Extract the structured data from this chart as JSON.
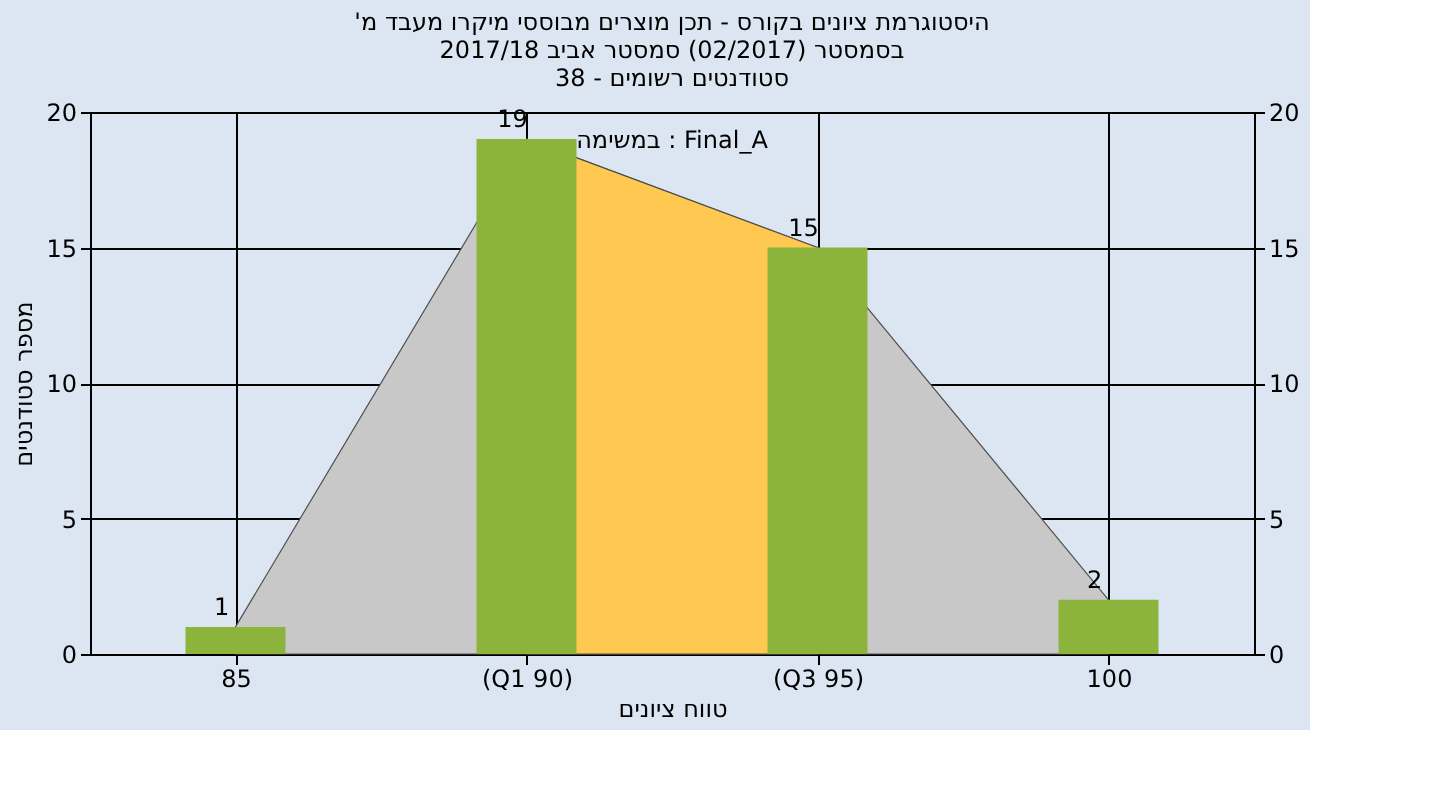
{
  "chart_data": {
    "type": "bar",
    "title": [
      "'היסטוגרמת ציונים בקורס - תכן מוצרים מבוססי מיקרו מעבד מ",
      "בסמסטר (02/2017) סמסטר אביב 2017/18",
      "סטודנטים רשומים - 38"
    ],
    "xlabel": "טווח ציונים",
    "ylabel": "מספר סטודנטים",
    "categories": [
      "85",
      "(Q1 90)",
      "(Q3 95)",
      "100"
    ],
    "series": [
      {
        "type": "area",
        "color": "#c8c8c8",
        "values": [
          1,
          19,
          15,
          2
        ]
      },
      {
        "type": "area",
        "color": "#ffc850",
        "values": [
          null,
          19,
          15,
          null
        ]
      },
      {
        "color": "#8cb43c",
        "values": [
          1,
          19,
          15,
          2
        ],
        "value_labels": [
          "1",
          "19",
          "15",
          "2"
        ]
      }
    ],
    "ylim": [
      0,
      20
    ],
    "yticks": [
      0,
      5,
      10,
      15,
      20
    ],
    "y2lim": [
      0,
      20
    ],
    "y2ticks": [
      0,
      5,
      10,
      15,
      20
    ],
    "grid": true,
    "annotations": [
      "במשימה : Final_A"
    ]
  }
}
